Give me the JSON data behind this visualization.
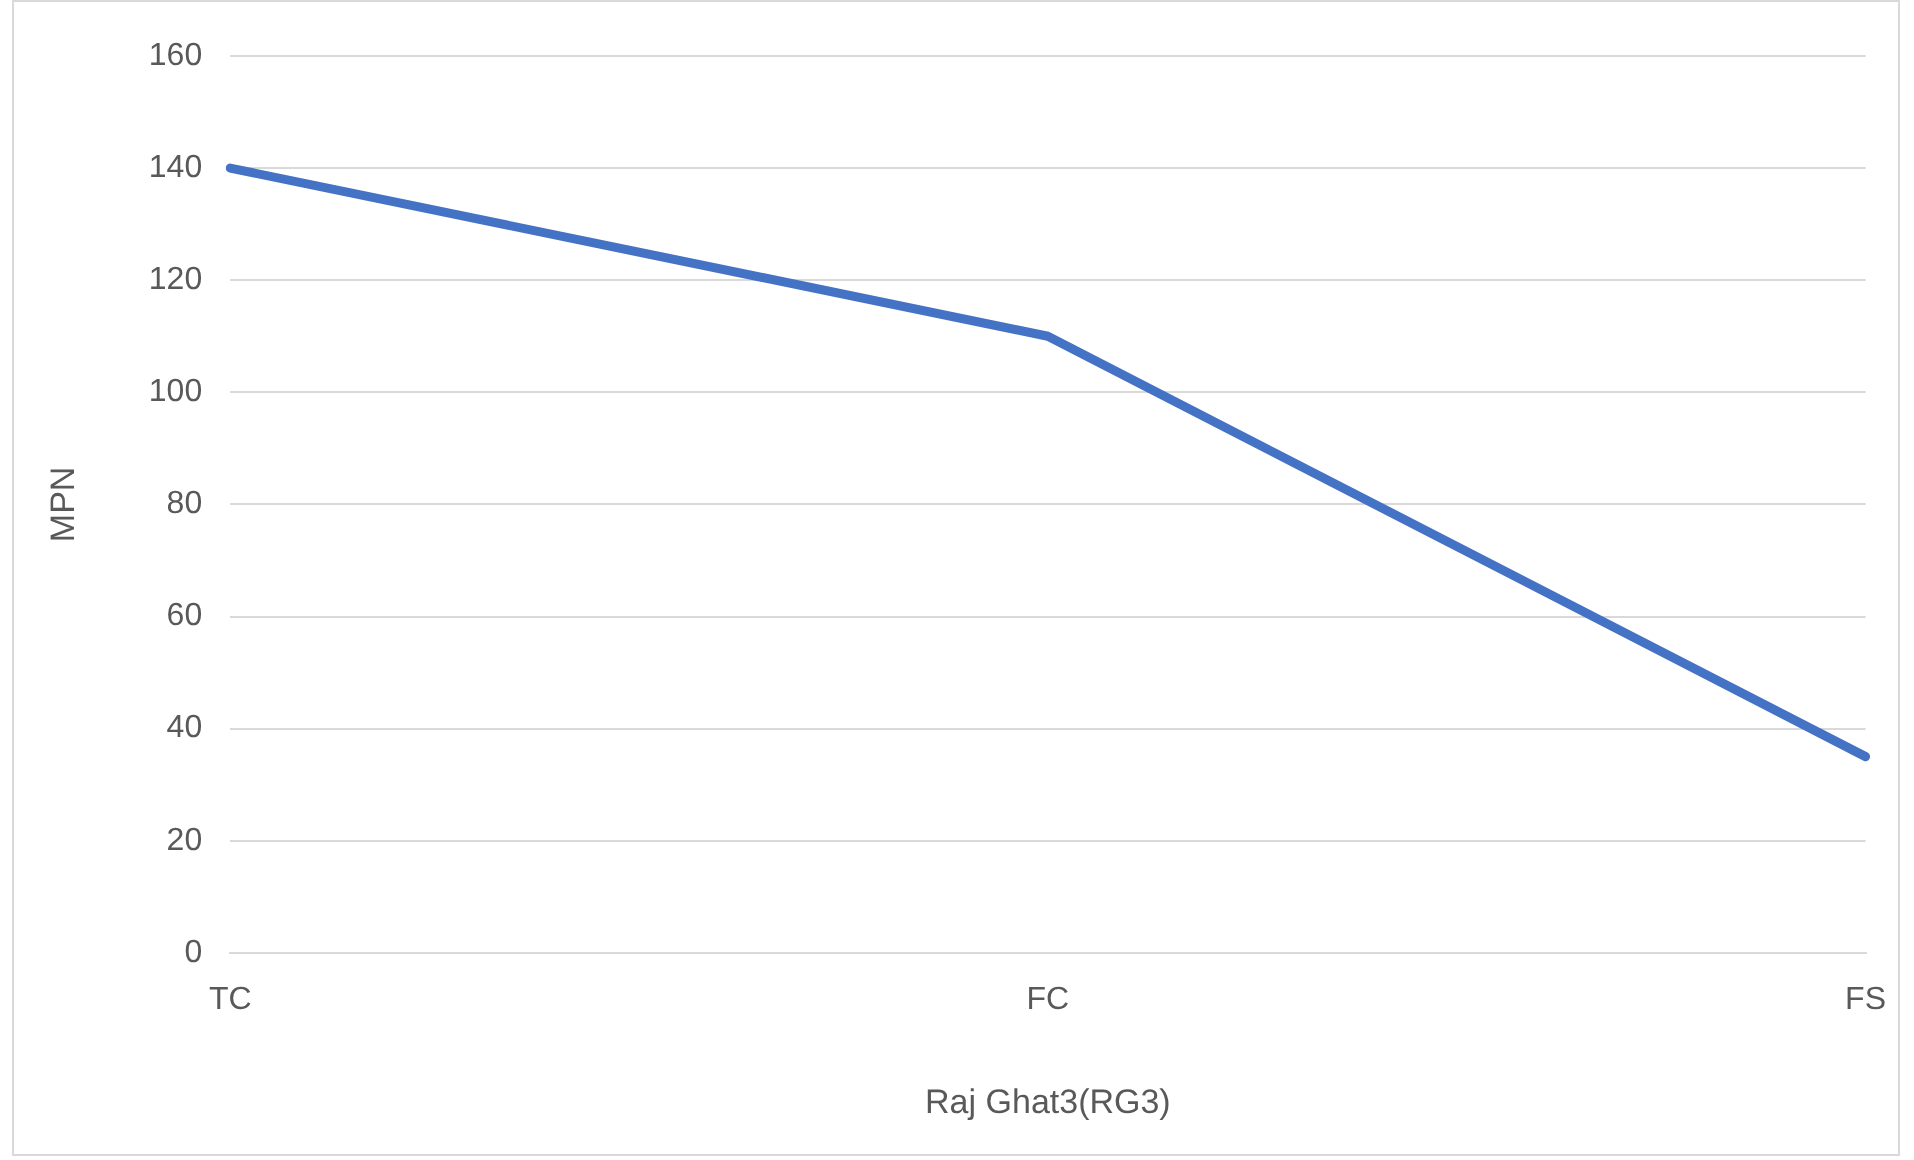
{
  "chart_data": {
    "type": "line",
    "xlabel": "Raj Ghat3(RG3)",
    "ylabel": "MPN",
    "categories": [
      "TC",
      "FC",
      "FS"
    ],
    "series": [
      {
        "color": "#4472c4",
        "values": [
          140,
          110,
          35
        ]
      }
    ],
    "ylim": [
      0,
      160
    ],
    "yticks": [
      0,
      20,
      40,
      60,
      80,
      100,
      120,
      140,
      160
    ],
    "grid": "y",
    "legend": false,
    "marker": "none"
  }
}
